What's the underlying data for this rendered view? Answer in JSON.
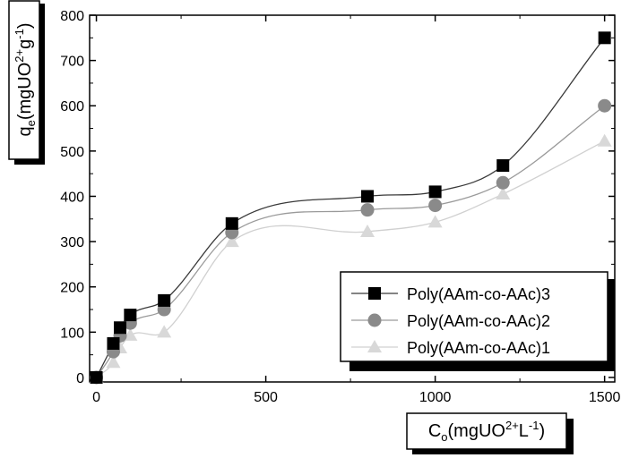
{
  "chart_data": {
    "type": "scatter",
    "title": "",
    "xlabel": {
      "base": "C",
      "sub": "o",
      "open": "(mgUO",
      "sup": "2+",
      "unit": "L",
      "unit_sup": "-1",
      "close": ")"
    },
    "ylabel": {
      "base": "q",
      "sub": "e",
      "open": "(mgUO",
      "sup": "2+",
      "unit": "g",
      "unit_sup": "-1",
      "close": ")"
    },
    "xlim": [
      -20,
      1530
    ],
    "ylim": [
      -10,
      800
    ],
    "xticks": [
      0,
      500,
      1000,
      1500
    ],
    "yticks": [
      0,
      100,
      200,
      300,
      400,
      500,
      600,
      700,
      800
    ],
    "grid": false,
    "legend_position": "bottom-right",
    "series": [
      {
        "name": "Poly(AAm-co-AAc)3",
        "marker": "square",
        "color": "#000000",
        "line_color": "#3a3a3a",
        "x": [
          0,
          50,
          70,
          100,
          200,
          400,
          800,
          1000,
          1200,
          1500
        ],
        "y": [
          0,
          75,
          110,
          138,
          170,
          340,
          400,
          410,
          468,
          750
        ]
      },
      {
        "name": "Poly(AAm-co-AAc)2",
        "marker": "circle",
        "color": "#8a8a8a",
        "line_color": "#9a9a9a",
        "x": [
          0,
          50,
          70,
          100,
          200,
          400,
          800,
          1000,
          1200,
          1500
        ],
        "y": [
          0,
          57,
          92,
          120,
          150,
          320,
          370,
          380,
          430,
          600
        ]
      },
      {
        "name": "Poly(AAm-co-AAc)1",
        "marker": "triangle",
        "color": "#d8d8d8",
        "line_color": "#d0d0d0",
        "x": [
          0,
          50,
          70,
          100,
          200,
          400,
          800,
          1000,
          1200,
          1500
        ],
        "y": [
          0,
          33,
          65,
          93,
          100,
          300,
          322,
          343,
          405,
          522
        ]
      }
    ]
  }
}
